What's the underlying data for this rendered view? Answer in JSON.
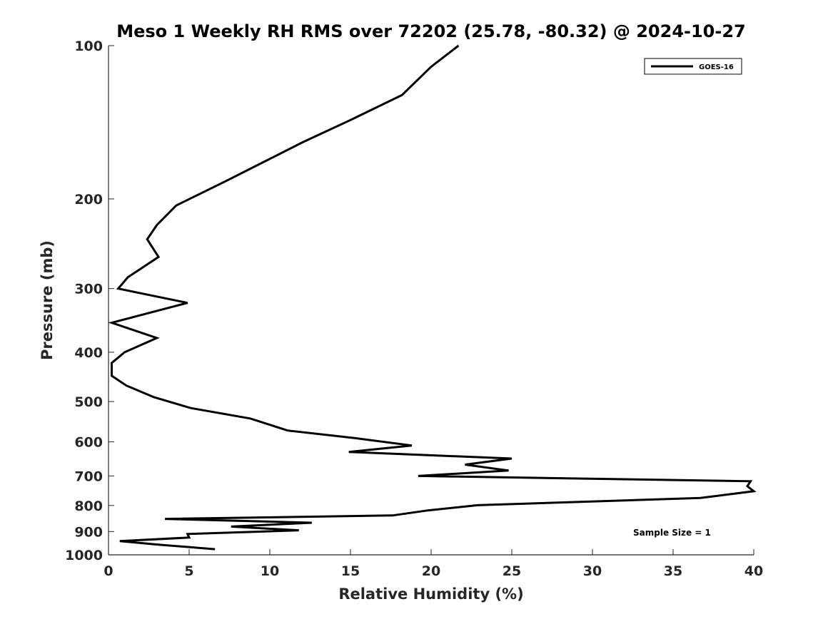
{
  "chart_data": {
    "type": "line",
    "title": "Meso 1 Weekly RH RMS over 72202 (25.78, -80.32) @ 2024-10-27",
    "xlabel": "Relative Humidity (%)",
    "ylabel": "Pressure (mb)",
    "xlim": [
      0,
      40
    ],
    "ylim": [
      1000,
      100
    ],
    "yscale": "log",
    "yaxis_reversed": true,
    "grid": false,
    "legend_position": "top-right",
    "x_ticks": [
      0,
      5,
      10,
      15,
      20,
      25,
      30,
      35,
      40
    ],
    "y_ticks": [
      100,
      200,
      300,
      400,
      500,
      600,
      700,
      800,
      900,
      1000
    ],
    "annotation": "Sample Size = 1",
    "series": [
      {
        "name": "GOES-16",
        "color": "#000000",
        "points": [
          [
            21.7,
            100
          ],
          [
            20.0,
            110
          ],
          [
            18.2,
            125
          ],
          [
            15.0,
            140
          ],
          [
            12.0,
            155
          ],
          [
            9.5,
            170
          ],
          [
            7.2,
            185
          ],
          [
            4.2,
            206
          ],
          [
            3.0,
            225
          ],
          [
            2.4,
            240
          ],
          [
            3.1,
            260
          ],
          [
            1.2,
            285
          ],
          [
            0.6,
            300
          ],
          [
            4.9,
            320
          ],
          [
            0.2,
            350
          ],
          [
            3.0,
            375
          ],
          [
            1.0,
            400
          ],
          [
            0.2,
            420
          ],
          [
            0.2,
            445
          ],
          [
            1.1,
            465
          ],
          [
            2.8,
            490
          ],
          [
            5.1,
            515
          ],
          [
            8.8,
            540
          ],
          [
            11.1,
            570
          ],
          [
            15.3,
            590
          ],
          [
            18.8,
            610
          ],
          [
            14.9,
            628
          ],
          [
            25.0,
            647
          ],
          [
            22.1,
            665
          ],
          [
            24.8,
            683
          ],
          [
            19.2,
            700
          ],
          [
            39.8,
            717
          ],
          [
            39.6,
            733
          ],
          [
            40.0,
            750
          ],
          [
            36.7,
            773
          ],
          [
            22.9,
            799
          ],
          [
            19.8,
            818
          ],
          [
            17.6,
            837
          ],
          [
            3.5,
            850
          ],
          [
            12.6,
            865
          ],
          [
            7.6,
            880
          ],
          [
            11.8,
            895
          ],
          [
            4.9,
            910
          ],
          [
            5.0,
            925
          ],
          [
            0.7,
            940
          ],
          [
            3.1,
            955
          ],
          [
            6.6,
            975
          ]
        ]
      }
    ]
  }
}
